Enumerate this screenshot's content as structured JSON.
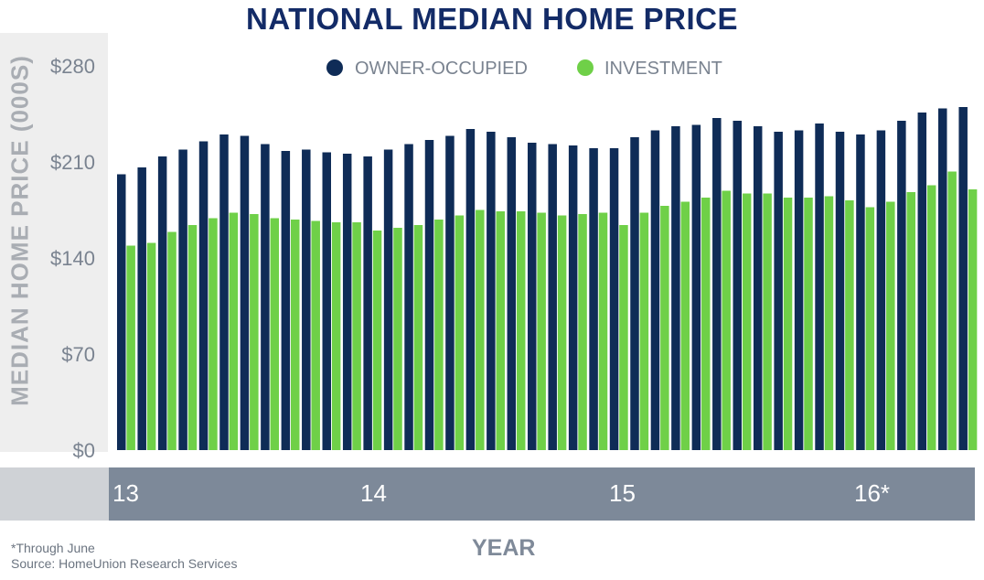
{
  "title": "NATIONAL MEDIAN HOME PRICE",
  "footnote": {
    "line1": "*Through June",
    "line2": "Source: HomeUnion Research Services"
  },
  "chart_data": {
    "type": "bar",
    "title": "NATIONAL MEDIAN HOME PRICE",
    "ylabel": "MEDIAN HOME PRICE (000S)",
    "xlabel": "YEAR",
    "ylim": [
      0,
      280
    ],
    "yticks": [
      "$0",
      "$70",
      "$140",
      "$210",
      "$280"
    ],
    "ytick_values": [
      0,
      70,
      140,
      210,
      280
    ],
    "xticks": [
      "13",
      "14",
      "15",
      "16*"
    ],
    "grid": false,
    "legend_position": "top",
    "colors": {
      "owner": "#0f2c57",
      "investment": "#6fd048"
    },
    "series": [
      {
        "name": "OWNER-OCCUPIED",
        "values": [
          201,
          206,
          214,
          219,
          225,
          230,
          229,
          223,
          218,
          219,
          217,
          216,
          214,
          219,
          223,
          226,
          229,
          234,
          232,
          228,
          224,
          223,
          222,
          220,
          220,
          228,
          233,
          236,
          237,
          242,
          240,
          236,
          232,
          233,
          238,
          232,
          230,
          233,
          240,
          246,
          249,
          250
        ]
      },
      {
        "name": "INVESTMENT",
        "values": [
          149,
          151,
          159,
          164,
          169,
          173,
          172,
          169,
          168,
          167,
          166,
          166,
          160,
          162,
          164,
          168,
          171,
          175,
          174,
          174,
          173,
          171,
          172,
          173,
          164,
          173,
          178,
          181,
          184,
          189,
          187,
          187,
          184,
          184,
          185,
          182,
          177,
          181,
          188,
          193,
          203,
          190
        ]
      }
    ]
  }
}
